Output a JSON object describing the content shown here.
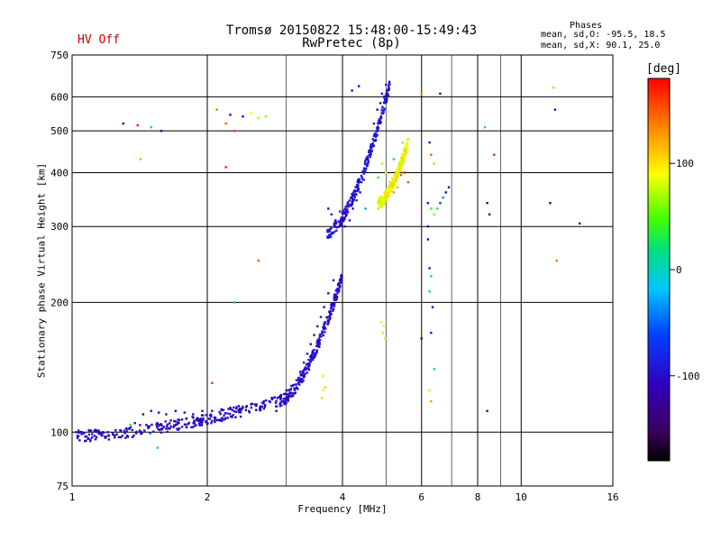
{
  "header": {
    "title_line1": "Tromsø 20150822 15:48:00-15:49:43",
    "title_line2": "RwPretec (8p)",
    "hv_status": "HV Off",
    "hv_color": "#c80000"
  },
  "phases_box": {
    "heading": "Phases",
    "o_mode": "mean, sd,O: -95.5, 18.5",
    "x_mode": "mean, sd,X:  90.1, 25.0"
  },
  "colorbar": {
    "label": "[deg]",
    "ticks": [
      {
        "value": 100,
        "label": "100"
      },
      {
        "value": 0,
        "label": "0"
      },
      {
        "value": -100,
        "label": "-100"
      }
    ],
    "range": [
      -180,
      180
    ]
  },
  "chart_data": {
    "type": "scatter",
    "title": "Tromsø 20150822 15:48:00-15:49:43",
    "subtitle": "RwPretec (8p)",
    "xlabel": "Frequency [MHz]",
    "ylabel": "Stationary phase Virtual Height [km]",
    "x_scale": "log",
    "y_scale": "log",
    "xlim": [
      1,
      16
    ],
    "ylim": [
      75,
      750
    ],
    "x_ticks": [
      1,
      2,
      4,
      6,
      8,
      10,
      16
    ],
    "y_ticks": [
      75,
      100,
      200,
      300,
      400,
      500,
      600,
      750
    ],
    "x_grid": [
      1,
      2,
      4,
      6,
      8,
      10,
      16
    ],
    "y_grid": [
      75,
      100,
      200,
      300,
      400,
      500,
      600,
      750
    ],
    "x_minor_grid": [
      3,
      5,
      7,
      9
    ],
    "color_by": "phase_deg",
    "traces": [
      {
        "name": "O-trace low",
        "freq_range": [
          1.02,
          2.9
        ],
        "height_range": [
          98,
          118
        ],
        "phase_center": -105
      },
      {
        "name": "O-trace ramp",
        "freq_range": [
          2.9,
          4.0
        ],
        "height_range": [
          118,
          230
        ],
        "phase_center": -100
      },
      {
        "name": "O-trace F region",
        "freq_range": [
          3.7,
          5.1
        ],
        "height_range": [
          290,
          640
        ],
        "phase_center": -95
      },
      {
        "name": "X-trace F region",
        "freq_range": [
          4.8,
          5.6
        ],
        "height_range": [
          340,
          470
        ],
        "phase_center": 90
      }
    ],
    "points": [
      [
        1.02,
        100,
        -110
      ],
      [
        1.05,
        99,
        -105
      ],
      [
        1.09,
        101,
        -100
      ],
      [
        1.14,
        100,
        -108
      ],
      [
        1.2,
        100,
        -102
      ],
      [
        1.25,
        101,
        -110
      ],
      [
        1.32,
        102,
        -104
      ],
      [
        1.38,
        105,
        -106
      ],
      [
        1.44,
        110,
        -120
      ],
      [
        1.5,
        112,
        -100
      ],
      [
        1.56,
        111,
        -105
      ],
      [
        1.62,
        110,
        -112
      ],
      [
        1.7,
        112,
        -100
      ],
      [
        1.78,
        111,
        -108
      ],
      [
        1.86,
        110,
        -104
      ],
      [
        1.95,
        112,
        -100
      ],
      [
        2.05,
        112,
        -110
      ],
      [
        2.15,
        113,
        -105
      ],
      [
        2.25,
        114,
        -102
      ],
      [
        2.35,
        115,
        -106
      ],
      [
        2.45,
        115,
        -96
      ],
      [
        2.55,
        116,
        -80
      ],
      [
        2.65,
        117,
        -60
      ],
      [
        2.75,
        118,
        -100
      ],
      [
        2.85,
        118,
        -100
      ],
      [
        2.92,
        122,
        -100
      ],
      [
        3.0,
        125,
        -102
      ],
      [
        3.08,
        128,
        -104
      ],
      [
        3.16,
        132,
        -105
      ],
      [
        3.22,
        138,
        -100
      ],
      [
        3.28,
        145,
        -106
      ],
      [
        3.34,
        152,
        -104
      ],
      [
        3.4,
        160,
        -108
      ],
      [
        3.46,
        168,
        -106
      ],
      [
        3.52,
        176,
        -102
      ],
      [
        3.58,
        185,
        -104
      ],
      [
        3.64,
        195,
        -106
      ],
      [
        3.72,
        210,
        -110
      ],
      [
        3.82,
        225,
        -108
      ],
      [
        3.72,
        330,
        -110
      ],
      [
        3.78,
        320,
        -104
      ],
      [
        3.86,
        310,
        -100
      ],
      [
        3.95,
        325,
        -90
      ],
      [
        4.05,
        300,
        -100
      ],
      [
        4.15,
        310,
        -110
      ],
      [
        4.22,
        330,
        -100
      ],
      [
        4.3,
        345,
        -95
      ],
      [
        4.38,
        360,
        -100
      ],
      [
        4.46,
        385,
        -105
      ],
      [
        4.55,
        420,
        -110
      ],
      [
        4.62,
        460,
        -104
      ],
      [
        4.7,
        520,
        -100
      ],
      [
        4.78,
        560,
        -110
      ],
      [
        4.86,
        580,
        -108
      ],
      [
        4.95,
        600,
        -112
      ],
      [
        5.05,
        620,
        -110
      ],
      [
        4.2,
        620,
        -104
      ],
      [
        4.35,
        635,
        -100
      ],
      [
        4.9,
        610,
        -115
      ],
      [
        5.0,
        640,
        -110
      ],
      [
        4.2,
        340,
        -60
      ],
      [
        4.5,
        330,
        -30
      ],
      [
        4.8,
        390,
        40
      ],
      [
        4.9,
        420,
        70
      ],
      [
        5.0,
        400,
        90
      ],
      [
        5.1,
        380,
        110
      ],
      [
        5.2,
        360,
        130
      ],
      [
        5.3,
        370,
        120
      ],
      [
        5.4,
        395,
        150
      ],
      [
        5.5,
        400,
        165
      ],
      [
        5.6,
        380,
        150
      ],
      [
        5.55,
        450,
        90
      ],
      [
        5.45,
        470,
        60
      ],
      [
        5.2,
        430,
        20
      ],
      [
        3.6,
        120,
        105
      ],
      [
        3.62,
        125,
        95
      ],
      [
        3.66,
        127,
        110
      ],
      [
        3.62,
        135,
        100
      ],
      [
        4.92,
        170,
        105
      ],
      [
        4.95,
        176,
        95
      ],
      [
        4.98,
        165,
        110
      ],
      [
        4.88,
        180,
        100
      ],
      [
        6.0,
        165,
        -120
      ],
      [
        6.2,
        340,
        -100
      ],
      [
        6.3,
        330,
        40
      ],
      [
        6.4,
        320,
        60
      ],
      [
        6.5,
        330,
        30
      ],
      [
        6.6,
        340,
        -60
      ],
      [
        6.7,
        350,
        -40
      ],
      [
        6.8,
        360,
        -110
      ],
      [
        6.9,
        370,
        -130
      ],
      [
        6.2,
        300,
        -110
      ],
      [
        6.2,
        280,
        -105
      ],
      [
        6.25,
        240,
        -100
      ],
      [
        6.3,
        230,
        20
      ],
      [
        6.25,
        212,
        0
      ],
      [
        6.35,
        195,
        -110
      ],
      [
        6.3,
        170,
        -100
      ],
      [
        6.4,
        140,
        20
      ],
      [
        6.25,
        125,
        80
      ],
      [
        6.3,
        118,
        130
      ],
      [
        6.25,
        470,
        -110
      ],
      [
        6.3,
        440,
        150
      ],
      [
        6.4,
        420,
        110
      ],
      [
        6.6,
        610,
        -110
      ],
      [
        6.0,
        610,
        130
      ],
      [
        1.3,
        520,
        -130
      ],
      [
        1.4,
        515,
        170
      ],
      [
        1.5,
        510,
        20
      ],
      [
        1.42,
        430,
        120
      ],
      [
        1.58,
        500,
        -120
      ],
      [
        2.1,
        560,
        140
      ],
      [
        2.25,
        545,
        -110
      ],
      [
        2.4,
        540,
        -130
      ],
      [
        2.2,
        520,
        150
      ],
      [
        2.3,
        500,
        160
      ],
      [
        2.5,
        550,
        90
      ],
      [
        2.6,
        535,
        70
      ],
      [
        2.7,
        540,
        60
      ],
      [
        2.2,
        412,
        170
      ],
      [
        2.6,
        250,
        150
      ],
      [
        2.3,
        200,
        10
      ],
      [
        2.05,
        130,
        160
      ],
      [
        2.8,
        120,
        140
      ],
      [
        2.85,
        112,
        -130
      ],
      [
        1.35,
        104,
        40
      ],
      [
        1.55,
        92,
        0
      ],
      [
        8.3,
        510,
        20
      ],
      [
        8.4,
        340,
        -120
      ],
      [
        8.5,
        320,
        -140
      ],
      [
        8.7,
        440,
        170
      ],
      [
        8.4,
        112,
        -110
      ],
      [
        11.8,
        630,
        60
      ],
      [
        11.9,
        560,
        -110
      ],
      [
        11.6,
        340,
        -140
      ],
      [
        12.0,
        250,
        140
      ],
      [
        13.5,
        305,
        -110
      ]
    ]
  }
}
